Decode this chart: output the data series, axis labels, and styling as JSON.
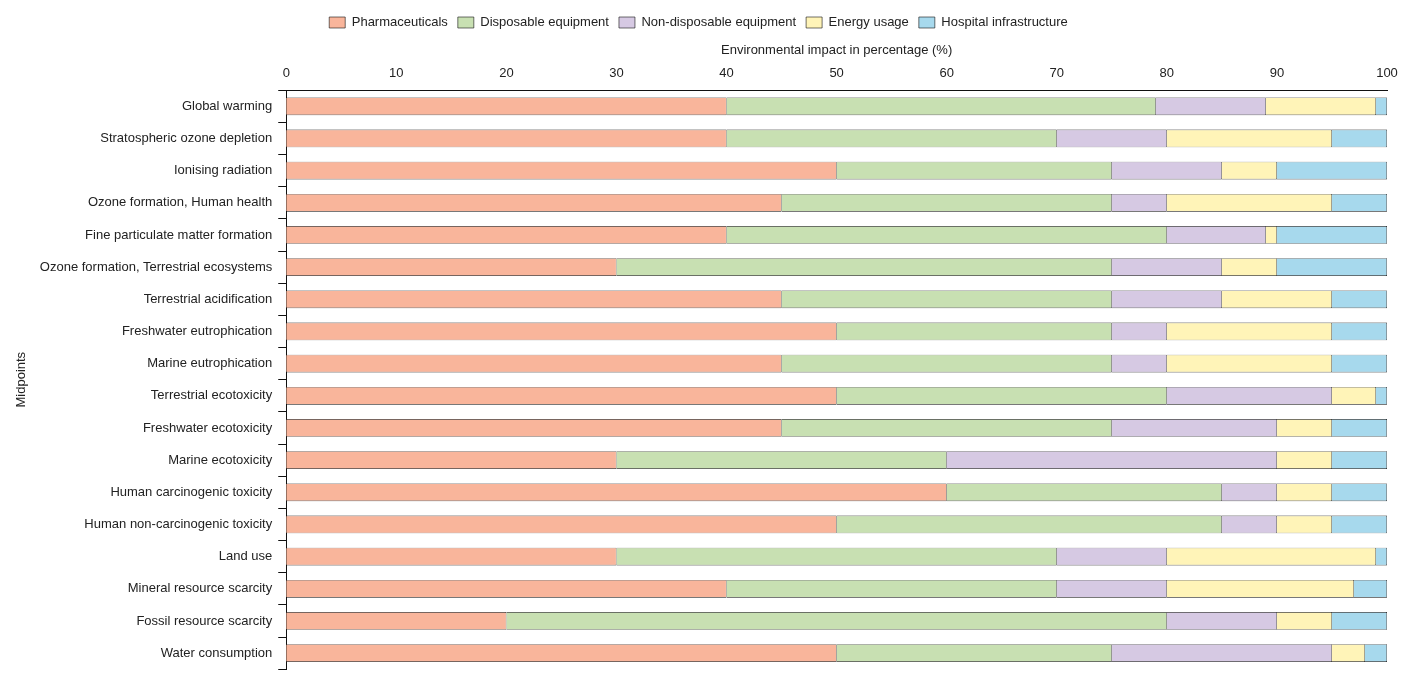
{
  "chart_data": {
    "type": "bar",
    "orientation": "horizontal",
    "stacked": true,
    "xlabel": "Environmental impact in percentage (%)",
    "ylabel": "Midpoints",
    "legend": "top",
    "categories": [
      "Global warming",
      "Stratospheric ozone depletion",
      "Ionising radiation",
      "Ozone formation, Human health",
      "Fine particulate matter formation",
      "Ozone formation, Terrestrial ecosystems",
      "Terrestrial acidification",
      "Freshwater eutrophication",
      "Marine eutrophication",
      "Terrestrial ecotoxicity",
      "Freshwater ecotoxicity",
      "Marine ecotoxicity",
      "Human carcinogenic toxicity",
      "Human non-carcinogenic toxicity",
      "Land use",
      "Mineral resource scarcity",
      "Fossil resource scarcity",
      "Water consumption"
    ],
    "xlim": [
      0,
      100
    ],
    "xticks": [
      0,
      10,
      20,
      30,
      40,
      50,
      60,
      70,
      80,
      90,
      100
    ],
    "series": [
      {
        "name": "Pharmaceuticals",
        "color": "#f9b59b",
        "values": [
          40,
          40,
          50,
          45,
          40,
          30,
          45,
          50,
          45,
          50,
          45,
          30,
          60,
          50,
          30,
          40,
          20,
          50
        ]
      },
      {
        "name": "Disposable equipment",
        "color": "#c8e0b2",
        "values": [
          39,
          30,
          25,
          30,
          40,
          45,
          30,
          25,
          30,
          30,
          30,
          30,
          25,
          35,
          40,
          30,
          60,
          25
        ]
      },
      {
        "name": "Non-disposable equipment",
        "color": "#d6c9e3",
        "values": [
          10,
          10,
          10,
          5,
          9,
          10,
          10,
          5,
          5,
          15,
          15,
          30,
          5,
          5,
          10,
          10,
          10,
          20
        ]
      },
      {
        "name": "Energy usage",
        "color": "#fff4b8",
        "values": [
          10,
          15,
          5,
          15,
          1,
          5,
          10,
          15,
          15,
          4,
          5,
          5,
          5,
          5,
          19,
          17,
          5,
          3
        ]
      },
      {
        "name": "Hospital infrastructure",
        "color": "#a7d9ed",
        "values": [
          1,
          5,
          10,
          5,
          10,
          10,
          5,
          5,
          5,
          1,
          5,
          5,
          5,
          5,
          1,
          3,
          5,
          2
        ]
      }
    ]
  }
}
